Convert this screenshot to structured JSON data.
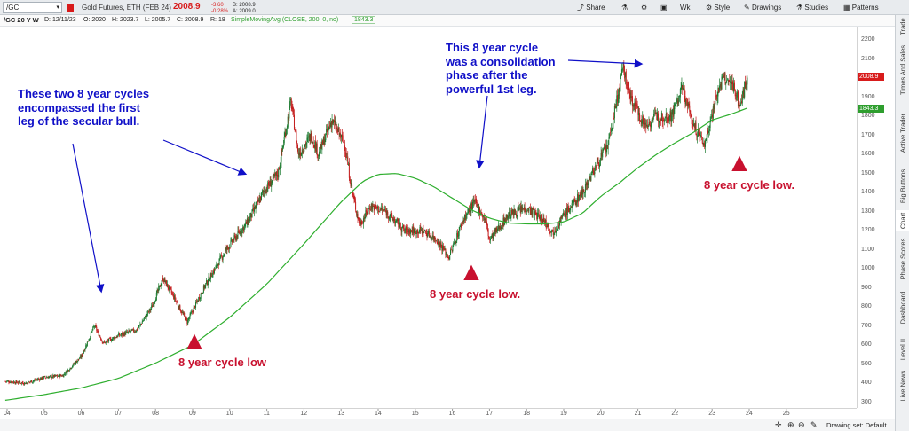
{
  "toolbar": {
    "symbol": "/GC",
    "description": "Gold Futures, ETH (FEB 24)",
    "last_price": "2008.9",
    "change": "-3.60",
    "change_pct": "-0.28%",
    "bid": "B: 2008.9",
    "ask": "A: 2009.0",
    "share_label": "Share",
    "timeframe_label": "Wk",
    "style_label": "Style",
    "drawings_label": "Drawings",
    "studies_label": "Studies",
    "patterns_label": "Patterns"
  },
  "infobar": {
    "symbol_tf": "/GC 20 Y W",
    "date": "D: 12/11/23",
    "open": "O: 2020",
    "high": "H: 2023.7",
    "low": "L: 2005.7",
    "close": "C: 2008.9",
    "range": "R: 18",
    "study": "SimpleMovingAvg (CLOSE, 200, 0, no)",
    "study_value": "1843.3"
  },
  "right_rail": [
    "Trade",
    "Times And Sales",
    "Active Trader",
    "Big Buttons",
    "Chart",
    "Phase Scores",
    "Dashboard",
    "Level II",
    "Live News"
  ],
  "status_bar": {
    "drawing_set": "Drawing set: Default"
  },
  "annotations": {
    "left_text": "These two 8 year cycles\nencompassed the first\nleg of the secular bull.",
    "mid_text": "This 8 year cycle\nwas a consolidation\nphase after the\npowerful 1st leg.",
    "low1": "8 year cycle low",
    "low2": "8 year cycle low.",
    "low3": "8 year cycle low."
  },
  "colors": {
    "up": "#1b7a2f",
    "down": "#c41e1e",
    "sma": "#2eae2e",
    "annotation_blue": "#1010c8",
    "annotation_red": "#c8102e",
    "price_tag": "#d81b1b",
    "sma_tag": "#2e9e2e"
  },
  "chart_data": {
    "type": "candlestick",
    "ylim": [
      270,
      2270
    ],
    "y_ticks": [
      300,
      400,
      500,
      600,
      700,
      800,
      900,
      1000,
      1100,
      1200,
      1300,
      1400,
      1500,
      1600,
      1700,
      1800,
      1900,
      2000,
      2100,
      2200
    ],
    "x_ticks": [
      "04",
      "05",
      "06",
      "07",
      "08",
      "09",
      "10",
      "11",
      "12",
      "13",
      "14",
      "15",
      "16",
      "17",
      "18",
      "19",
      "20",
      "21",
      "22",
      "23",
      "24",
      "25"
    ],
    "x_tick_years": [
      2004,
      2005,
      2006,
      2007,
      2008,
      2009,
      2010,
      2011,
      2012,
      2013,
      2014,
      2015,
      2016,
      2017,
      2018,
      2019,
      2020,
      2021,
      2022,
      2023,
      2024,
      2025
    ],
    "price_path": [
      [
        2003.95,
        410
      ],
      [
        2004.5,
        400
      ],
      [
        2005.0,
        430
      ],
      [
        2005.5,
        440
      ],
      [
        2006.0,
        540
      ],
      [
        2006.35,
        700
      ],
      [
        2006.6,
        610
      ],
      [
        2007.0,
        650
      ],
      [
        2007.5,
        680
      ],
      [
        2007.9,
        800
      ],
      [
        2008.2,
        950
      ],
      [
        2008.5,
        850
      ],
      [
        2008.85,
        720
      ],
      [
        2009.3,
        900
      ],
      [
        2009.9,
        1100
      ],
      [
        2010.5,
        1250
      ],
      [
        2010.9,
        1400
      ],
      [
        2011.3,
        1500
      ],
      [
        2011.65,
        1880
      ],
      [
        2011.85,
        1600
      ],
      [
        2012.2,
        1700
      ],
      [
        2012.4,
        1600
      ],
      [
        2012.75,
        1780
      ],
      [
        2013.1,
        1650
      ],
      [
        2013.3,
        1400
      ],
      [
        2013.5,
        1230
      ],
      [
        2013.8,
        1330
      ],
      [
        2014.2,
        1300
      ],
      [
        2014.7,
        1200
      ],
      [
        2015.2,
        1200
      ],
      [
        2015.6,
        1150
      ],
      [
        2015.9,
        1060
      ],
      [
        2016.3,
        1260
      ],
      [
        2016.6,
        1350
      ],
      [
        2016.9,
        1250
      ],
      [
        2017.0,
        1150
      ],
      [
        2017.5,
        1280
      ],
      [
        2018.0,
        1320
      ],
      [
        2018.5,
        1250
      ],
      [
        2018.7,
        1190
      ],
      [
        2019.0,
        1280
      ],
      [
        2019.5,
        1400
      ],
      [
        2019.9,
        1550
      ],
      [
        2020.2,
        1650
      ],
      [
        2020.6,
        2050
      ],
      [
        2020.8,
        1900
      ],
      [
        2021.2,
        1750
      ],
      [
        2021.5,
        1800
      ],
      [
        2021.9,
        1800
      ],
      [
        2022.2,
        1950
      ],
      [
        2022.5,
        1750
      ],
      [
        2022.8,
        1650
      ],
      [
        2023.1,
        1900
      ],
      [
        2023.3,
        2000
      ],
      [
        2023.6,
        1950
      ],
      [
        2023.75,
        1850
      ],
      [
        2023.95,
        2010
      ]
    ],
    "sma_path": [
      [
        2003.95,
        310
      ],
      [
        2005.0,
        340
      ],
      [
        2006.0,
        375
      ],
      [
        2007.0,
        425
      ],
      [
        2008.0,
        505
      ],
      [
        2009.0,
        600
      ],
      [
        2010.0,
        745
      ],
      [
        2011.0,
        920
      ],
      [
        2012.0,
        1130
      ],
      [
        2013.0,
        1350
      ],
      [
        2013.6,
        1460
      ],
      [
        2014.0,
        1495
      ],
      [
        2014.5,
        1500
      ],
      [
        2015.0,
        1475
      ],
      [
        2015.5,
        1430
      ],
      [
        2016.0,
        1370
      ],
      [
        2016.5,
        1310
      ],
      [
        2017.0,
        1265
      ],
      [
        2017.5,
        1240
      ],
      [
        2018.0,
        1235
      ],
      [
        2018.5,
        1235
      ],
      [
        2019.0,
        1245
      ],
      [
        2019.5,
        1290
      ],
      [
        2020.0,
        1380
      ],
      [
        2020.5,
        1450
      ],
      [
        2021.0,
        1530
      ],
      [
        2021.5,
        1600
      ],
      [
        2022.0,
        1660
      ],
      [
        2022.5,
        1715
      ],
      [
        2023.0,
        1780
      ],
      [
        2023.5,
        1810
      ],
      [
        2023.95,
        1843
      ]
    ],
    "last_price": 2008.9,
    "sma_last": 1843.3,
    "sma_label": "SimpleMovingAvg (CLOSE, 200, 0, no)"
  }
}
